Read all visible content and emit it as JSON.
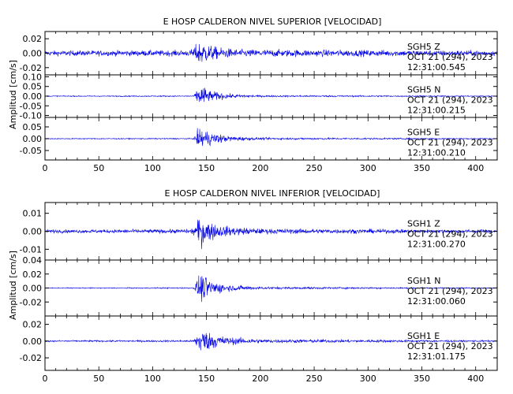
{
  "figure": {
    "ylabel": "Amplitud [cm/s]",
    "trace_color": "#0000e6",
    "axis_color": "#000000",
    "xlim": [
      0,
      420
    ],
    "xticks": [
      0,
      50,
      100,
      150,
      200,
      250,
      300,
      350,
      400
    ]
  },
  "chart_data": [
    {
      "type": "line",
      "title": "E HOSP CALDERON NIVEL SUPERIOR [VELOCIDAD]",
      "ylabel": "Amplitud [cm/s]",
      "xlim": [
        0,
        420
      ],
      "panels": [
        {
          "station": "SGH5",
          "component": "Z",
          "date": "OCT 21 (294), 2023",
          "time": "12:31:00.545",
          "ylim": [
            -0.03,
            0.03
          ],
          "yticks": [
            0.02,
            0.0,
            -0.02
          ],
          "tick_labels": [
            "0.02",
            "0.00",
            "-0.02"
          ],
          "envelope": [
            [
              0,
              0.006
            ],
            [
              135,
              0.007
            ],
            [
              140,
              0.02
            ],
            [
              145,
              0.03
            ],
            [
              150,
              0.022
            ],
            [
              160,
              0.014
            ],
            [
              180,
              0.009
            ],
            [
              420,
              0.006
            ]
          ]
        },
        {
          "station": "SGH5",
          "component": "N",
          "date": "OCT 21 (294), 2023",
          "time": "12:31:00.215",
          "ylim": [
            -0.11,
            0.11
          ],
          "yticks": [
            0.1,
            0.05,
            0.0,
            -0.05,
            -0.1
          ],
          "tick_labels": [
            "0.10",
            "0.05",
            "0.00",
            "-0.05",
            "-0.10"
          ],
          "envelope": [
            [
              0,
              0.004
            ],
            [
              138,
              0.005
            ],
            [
              142,
              0.07
            ],
            [
              146,
              0.1
            ],
            [
              152,
              0.05
            ],
            [
              170,
              0.02
            ],
            [
              200,
              0.008
            ],
            [
              420,
              0.004
            ]
          ]
        },
        {
          "station": "SGH5",
          "component": "E",
          "date": "OCT 21 (294), 2023",
          "time": "12:31:00.210",
          "ylim": [
            -0.09,
            0.09
          ],
          "yticks": [
            0.05,
            0.0,
            -0.05
          ],
          "tick_labels": [
            "0.05",
            "0.00",
            "-0.05"
          ],
          "envelope": [
            [
              0,
              0.003
            ],
            [
              138,
              0.004
            ],
            [
              142,
              0.06
            ],
            [
              146,
              0.08
            ],
            [
              152,
              0.05
            ],
            [
              170,
              0.02
            ],
            [
              200,
              0.008
            ],
            [
              420,
              0.003
            ]
          ]
        }
      ]
    },
    {
      "type": "line",
      "title": "E HOSP CALDERON NIVEL INFERIOR [VELOCIDAD]",
      "ylabel": "Amplitud [cm/s]",
      "xlim": [
        0,
        420
      ],
      "panels": [
        {
          "station": "SGH1",
          "component": "Z",
          "date": "OCT 21 (294), 2023",
          "time": "12:31:00.270",
          "ylim": [
            -0.016,
            0.016
          ],
          "yticks": [
            0.01,
            0.0,
            -0.01
          ],
          "tick_labels": [
            "0.01",
            "0.00",
            "-0.01"
          ],
          "envelope": [
            [
              0,
              0.0015
            ],
            [
              136,
              0.002
            ],
            [
              140,
              0.008
            ],
            [
              145,
              0.015
            ],
            [
              150,
              0.01
            ],
            [
              165,
              0.005
            ],
            [
              200,
              0.0025
            ],
            [
              420,
              0.0015
            ]
          ]
        },
        {
          "station": "SGH1",
          "component": "N",
          "date": "OCT 21 (294), 2023",
          "time": "12:31:00.060",
          "ylim": [
            -0.04,
            0.04
          ],
          "yticks": [
            0.04,
            0.02,
            0.0,
            -0.02
          ],
          "tick_labels": [
            "0.04",
            "0.02",
            "0.00",
            "-0.02"
          ],
          "envelope": [
            [
              0,
              0.001
            ],
            [
              138,
              0.0015
            ],
            [
              142,
              0.025
            ],
            [
              146,
              0.035
            ],
            [
              152,
              0.02
            ],
            [
              170,
              0.008
            ],
            [
              200,
              0.003
            ],
            [
              420,
              0.001
            ]
          ]
        },
        {
          "station": "SGH1",
          "component": "E",
          "date": "OCT 21 (294), 2023",
          "time": "12:31:01.175",
          "ylim": [
            -0.035,
            0.03
          ],
          "yticks": [
            0.02,
            0.0,
            -0.02
          ],
          "tick_labels": [
            "0.02",
            "0.00",
            "-0.02"
          ],
          "envelope": [
            [
              0,
              0.0015
            ],
            [
              138,
              0.002
            ],
            [
              142,
              0.02
            ],
            [
              146,
              0.028
            ],
            [
              152,
              0.018
            ],
            [
              170,
              0.008
            ],
            [
              200,
              0.004
            ],
            [
              420,
              0.0015
            ]
          ]
        }
      ]
    }
  ]
}
